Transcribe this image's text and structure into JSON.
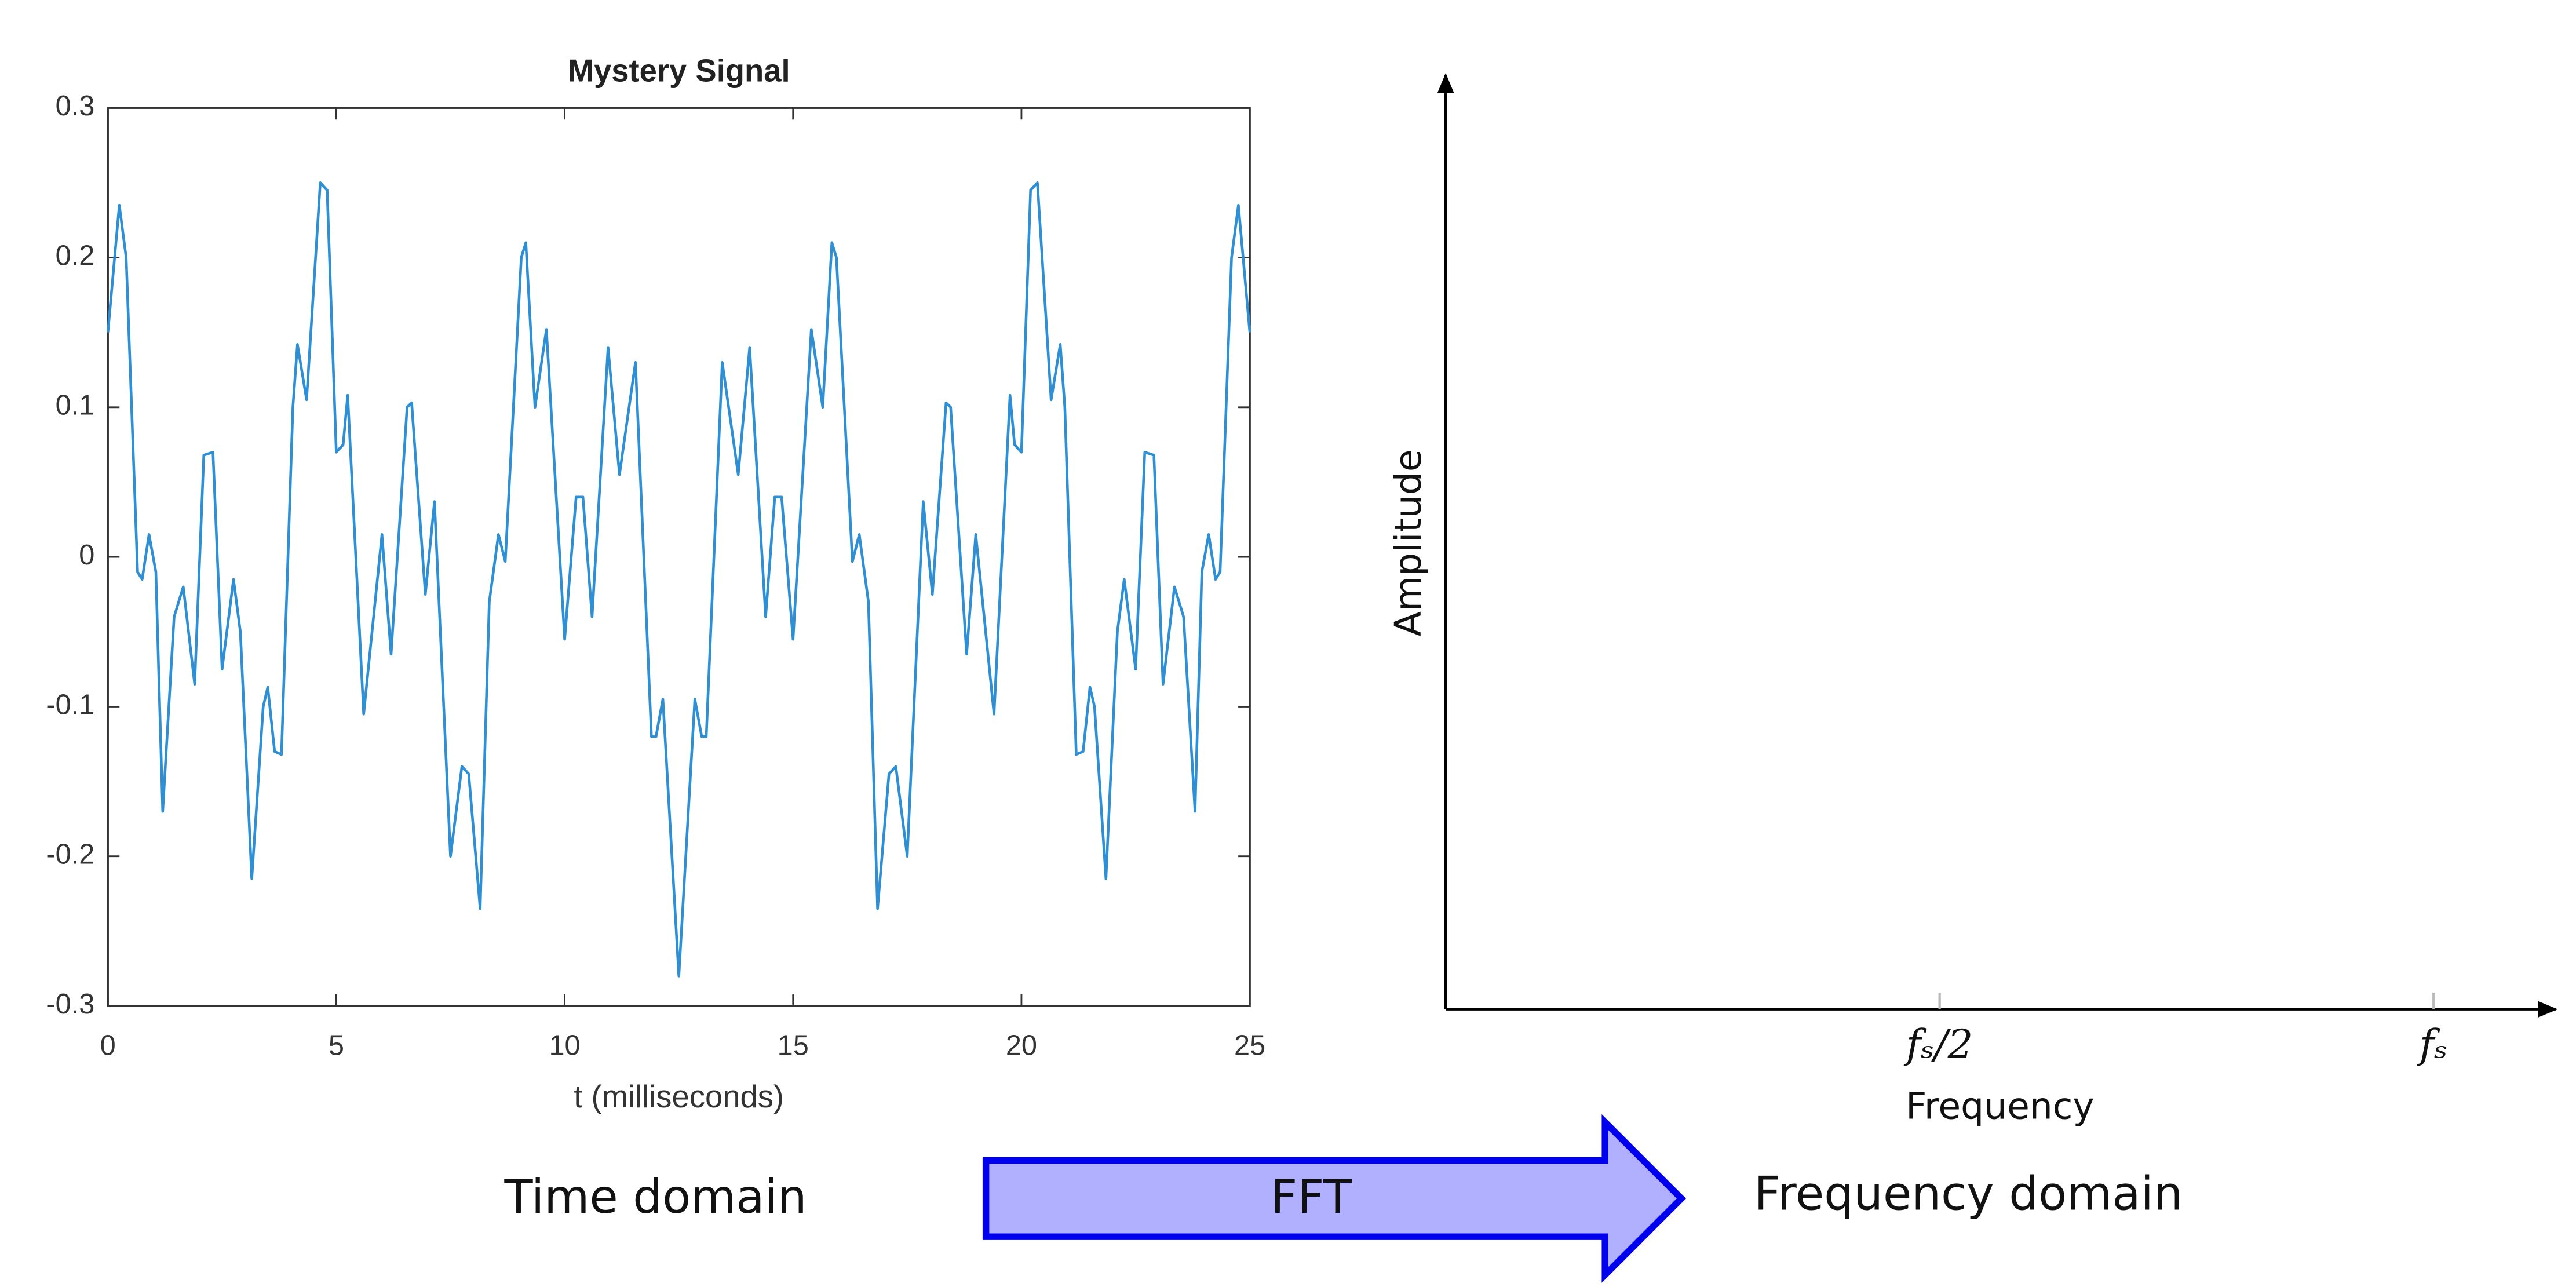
{
  "chart_data": [
    {
      "type": "line",
      "title": "Mystery Signal",
      "xlabel": "t (milliseconds)",
      "color": "#2f8fd4",
      "xlim": [
        0,
        25
      ],
      "ylim": [
        -0.3,
        0.3
      ],
      "xticks": [
        0,
        5,
        10,
        15,
        20,
        25
      ],
      "yticks": [
        -0.3,
        -0.2,
        -0.1,
        0,
        0.1,
        0.2,
        0.3
      ],
      "x": [
        0,
        0.25,
        0.4,
        0.65,
        0.75,
        0.9,
        1.05,
        1.2,
        1.45,
        1.65,
        1.9,
        2.1,
        2.3,
        2.5,
        2.75,
        2.9,
        3.15,
        3.4,
        3.5,
        3.65,
        3.8,
        4.05,
        4.15,
        4.35,
        4.65,
        4.8,
        5.0,
        5.15,
        5.25,
        5.6,
        6.0,
        6.2,
        6.55,
        6.65,
        6.95,
        7.15,
        7.5,
        7.75,
        7.9,
        8.15,
        8.35,
        8.55,
        8.7,
        9.05,
        9.15,
        9.35,
        9.6,
        10.0,
        10.25,
        10.4,
        10.6,
        10.95,
        11.2,
        11.55,
        11.9,
        12.0,
        12.15,
        12.5,
        12.85,
        13.0,
        13.1,
        13.45,
        13.8,
        14.05,
        14.4,
        14.6,
        14.75,
        15.0,
        15.4,
        15.65,
        15.85,
        15.95,
        16.3,
        16.45,
        16.65,
        16.85,
        17.1,
        17.25,
        17.5,
        17.85,
        18.05,
        18.35,
        18.45,
        18.8,
        19.0,
        19.4,
        19.75,
        19.85,
        20.0,
        20.2,
        20.35,
        20.65,
        20.85,
        20.95,
        21.2,
        21.35,
        21.5,
        21.6,
        21.85,
        22.1,
        22.25,
        22.5,
        22.7,
        22.9,
        23.1,
        23.35,
        23.55,
        23.8,
        23.95,
        24.1,
        24.25,
        24.35,
        24.6,
        24.75,
        25
      ],
      "values": [
        0.15,
        0.235,
        0.2,
        -0.01,
        -0.015,
        0.015,
        -0.01,
        -0.17,
        -0.04,
        -0.02,
        -0.085,
        0.068,
        0.07,
        -0.075,
        -0.015,
        -0.05,
        -0.215,
        -0.1,
        -0.087,
        -0.13,
        -0.132,
        0.1,
        0.142,
        0.105,
        0.25,
        0.245,
        0.07,
        0.075,
        0.108,
        -0.105,
        0.015,
        -0.065,
        0.1,
        0.103,
        -0.025,
        0.037,
        -0.2,
        -0.14,
        -0.145,
        -0.235,
        -0.03,
        0.015,
        -0.003,
        0.2,
        0.21,
        0.1,
        0.152,
        -0.055,
        0.04,
        0.04,
        -0.04,
        0.14,
        0.055,
        0.13,
        -0.12,
        -0.12,
        -0.095,
        -0.28,
        -0.095,
        -0.12,
        -0.12,
        0.13,
        0.055,
        0.14,
        -0.04,
        0.04,
        0.04,
        -0.055,
        0.152,
        0.1,
        0.21,
        0.2,
        -0.003,
        0.015,
        -0.03,
        -0.235,
        -0.145,
        -0.14,
        -0.2,
        0.037,
        -0.025,
        0.103,
        0.1,
        -0.065,
        0.015,
        -0.105,
        0.108,
        0.075,
        0.07,
        0.245,
        0.25,
        0.105,
        0.142,
        0.1,
        -0.132,
        -0.13,
        -0.087,
        -0.1,
        -0.215,
        -0.05,
        -0.015,
        -0.075,
        0.07,
        0.068,
        -0.085,
        -0.02,
        -0.04,
        -0.17,
        -0.01,
        0.015,
        -0.015,
        -0.01,
        0.2,
        0.235,
        0.15
      ]
    },
    {
      "type": "axes",
      "xlabel": "Frequency",
      "ylabel": "Amplitude",
      "xlim": [
        0,
        1.124
      ],
      "xticks": [
        {
          "value": 0.5,
          "label": "fₛ/2"
        },
        {
          "value": 1,
          "label": "fₛ"
        }
      ]
    }
  ],
  "labels": {
    "left": "Time domain",
    "arrow": "FFT",
    "right": "Frequency domain"
  }
}
